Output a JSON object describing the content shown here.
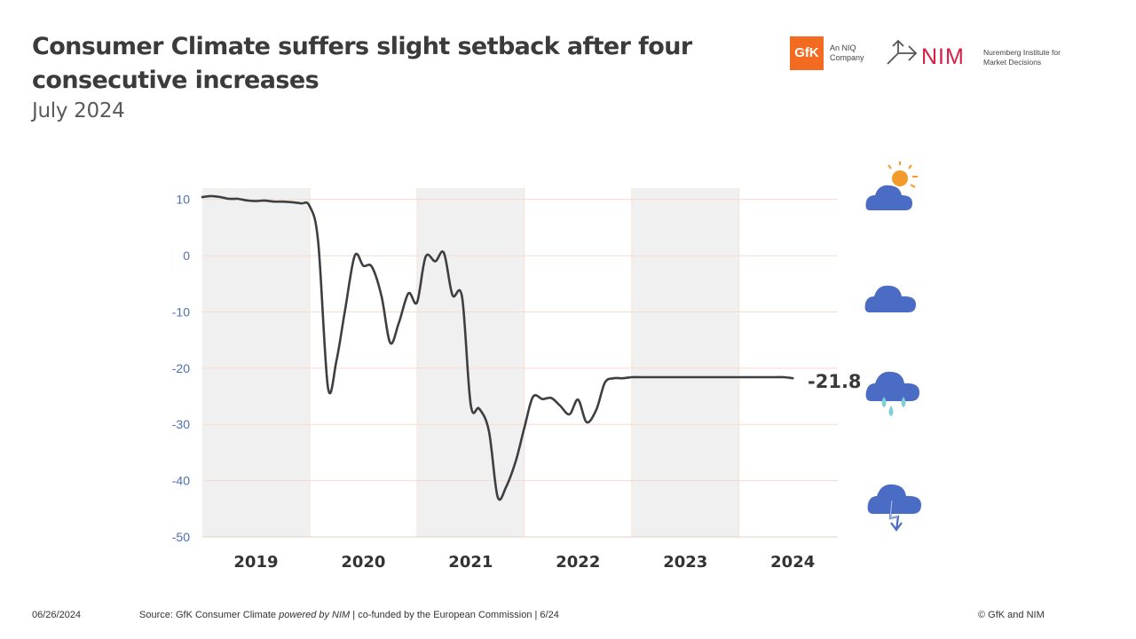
{
  "header": {
    "title": "Consumer Climate suffers slight setback after four consecutive increases",
    "subtitle": "July 2024"
  },
  "logos": {
    "gfk_mark": "GfK",
    "gfk_sub": "An NIQ Company",
    "nim_mark": "NIM",
    "nim_sub": "Nuremberg Institute for Market Decisions"
  },
  "footer": {
    "date": "06/26/2024",
    "source_prefix": "Source: GfK Consumer Climate ",
    "source_italic": "powered by NIM",
    "source_suffix": " | co-funded by the European Commission | 6/24",
    "copyright": "© GfK and NIM"
  },
  "weather_icons": [
    "sun-cloud-icon",
    "cloud-icon",
    "rain-cloud-icon",
    "storm-cloud-icon"
  ],
  "colors": {
    "line": "#3d3f42",
    "band": "#f0f0f0",
    "tick_label": "#4d6fb5",
    "icon_blue": "#4a6cc4",
    "sun": "#f39a2c",
    "rain": "#7fcfd6"
  },
  "chart_data": {
    "type": "line",
    "title": "Consumer Climate suffers slight setback after four consecutive increases",
    "ylim": [
      -50,
      12
    ],
    "yticks": [
      10,
      0,
      -10,
      -20,
      -30,
      -40,
      -50
    ],
    "xlim": [
      2019.0,
      2024.92
    ],
    "year_labels": [
      "2019",
      "2020",
      "2021",
      "2022",
      "2023",
      "2024"
    ],
    "shaded_years": [
      "2019",
      "2021",
      "2023"
    ],
    "grid": "horizontal",
    "series": [
      {
        "x": [
          2019.0,
          2019.08,
          2019.17,
          2019.25,
          2019.33,
          2019.42,
          2019.5,
          2019.58,
          2019.67,
          2019.75,
          2019.83,
          2019.92,
          2020.0,
          2020.08,
          2020.17,
          2020.25,
          2020.33,
          2020.42,
          2020.5,
          2020.58,
          2020.67,
          2020.75,
          2020.83,
          2020.92,
          2021.0,
          2021.08,
          2021.17,
          2021.25,
          2021.33,
          2021.42,
          2021.5,
          2021.58,
          2021.67,
          2021.75,
          2021.83,
          2021.92,
          2022.0,
          2022.08,
          2022.17,
          2022.25,
          2022.33,
          2022.42,
          2022.5,
          2022.58,
          2022.67,
          2022.75,
          2022.83,
          2022.92,
          2023.0,
          2023.08,
          2023.17,
          2023.25,
          2023.33,
          2023.42,
          2023.5,
          2023.58,
          2023.67,
          2023.75,
          2023.83,
          2023.92,
          2024.0,
          2024.08,
          2024.17,
          2024.25,
          2024.33,
          2024.42,
          2024.5
        ],
        "values": [
          10.4,
          10.6,
          10.4,
          10.1,
          10.1,
          9.8,
          9.7,
          9.8,
          9.6,
          9.6,
          9.5,
          9.3,
          8.8,
          2.3,
          -23.4,
          -18.6,
          -9.6,
          0.0,
          -1.8,
          -2.0,
          -7.3,
          -15.5,
          -12.0,
          -6.7,
          -8.3,
          -0.2,
          -1.0,
          0.5,
          -7.0,
          -7.4,
          -26.5,
          -27.2,
          -31.2,
          -42.8,
          -41.1,
          -36.5,
          -30.6,
          -25.1,
          -25.5,
          -25.3,
          -26.6,
          -28.2,
          -25.6,
          -29.6,
          -27.4,
          -22.6,
          -21.8,
          -21.8,
          -21.6,
          -21.6,
          -21.6,
          -21.6,
          -21.6,
          -21.6,
          -21.6,
          -21.6,
          -21.6,
          -21.6,
          -21.6,
          -21.6,
          -21.6,
          -21.6,
          -21.6,
          -21.6,
          -21.6,
          -21.6,
          -21.8
        ]
      }
    ],
    "last_value_label": "-21.8"
  }
}
